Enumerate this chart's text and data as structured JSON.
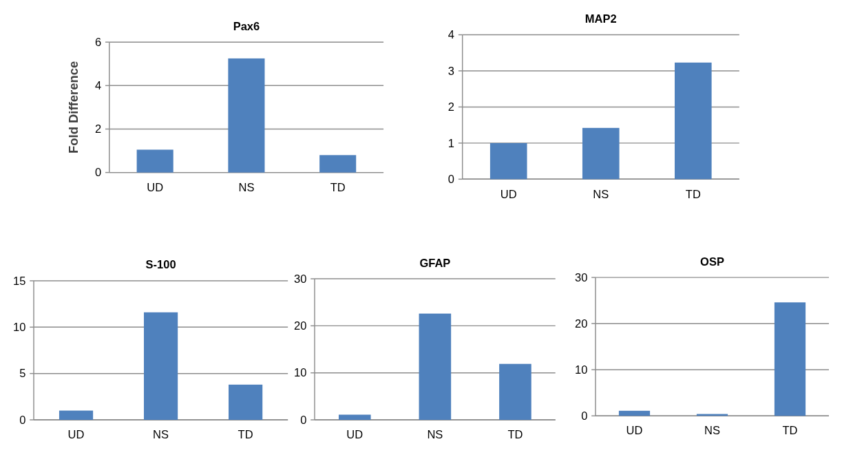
{
  "chart_data": [
    {
      "type": "bar",
      "title": "Pax6",
      "ylabel": "Fold Difference",
      "categories": [
        "UD",
        "NS",
        "TD"
      ],
      "values": [
        1.05,
        5.25,
        0.8
      ],
      "color": "#4f81bd",
      "ylim": [
        0,
        6
      ],
      "yticks": [
        0,
        2,
        4,
        6
      ],
      "grid": "y"
    },
    {
      "type": "bar",
      "title": "MAP2",
      "categories": [
        "UD",
        "NS",
        "TD"
      ],
      "values": [
        1.0,
        1.42,
        3.23
      ],
      "color": "#4f81bd",
      "ylim": [
        0,
        4
      ],
      "yticks": [
        0,
        1,
        2,
        3,
        4
      ],
      "grid": "y"
    },
    {
      "type": "bar",
      "title": "S-100",
      "categories": [
        "UD",
        "NS",
        "TD"
      ],
      "values": [
        1.0,
        11.6,
        3.8
      ],
      "color": "#4f81bd",
      "ylim": [
        0,
        15
      ],
      "yticks": [
        0,
        5,
        10,
        15
      ],
      "grid": "y"
    },
    {
      "type": "bar",
      "title": "GFAP",
      "categories": [
        "UD",
        "NS",
        "TD"
      ],
      "values": [
        1.1,
        22.6,
        11.9
      ],
      "color": "#4f81bd",
      "ylim": [
        0,
        30
      ],
      "yticks": [
        0,
        10,
        20,
        30
      ],
      "grid": "y"
    },
    {
      "type": "bar",
      "title": "OSP",
      "categories": [
        "UD",
        "NS",
        "TD"
      ],
      "values": [
        1.1,
        0.4,
        24.6
      ],
      "color": "#4f81bd",
      "ylim": [
        0,
        30
      ],
      "yticks": [
        0,
        10,
        20,
        30
      ],
      "grid": "y"
    }
  ]
}
